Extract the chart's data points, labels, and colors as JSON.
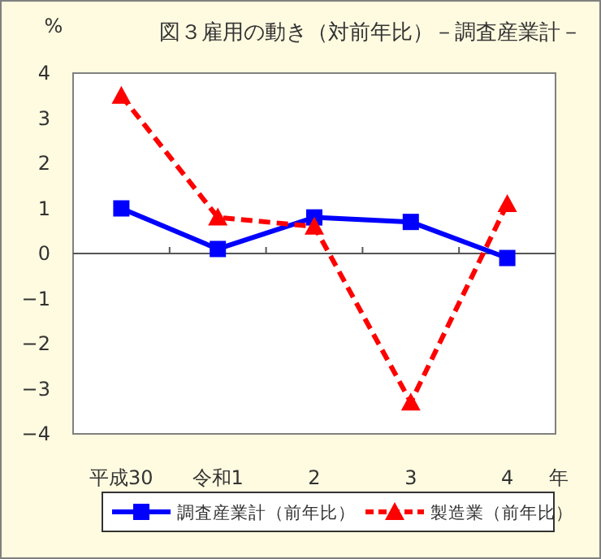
{
  "chart_data": {
    "type": "line",
    "title": "図３雇用の動き（対前年比）－調査産業計－",
    "ylabel": "%",
    "xlabel": "年",
    "categories": [
      "平成30",
      "令和1",
      "2",
      "3",
      "4"
    ],
    "series": [
      {
        "name": "調査産業計（前年比）",
        "color": "#0000ff",
        "values": [
          1.0,
          0.1,
          0.8,
          0.7,
          -0.1
        ],
        "marker": "square",
        "line_style": "solid"
      },
      {
        "name": "製造業（前年比）",
        "color": "#ff0000",
        "values": [
          3.5,
          0.8,
          0.6,
          -3.3,
          1.1
        ],
        "marker": "triangle",
        "line_style": "dashed"
      }
    ],
    "ylim": [
      -4,
      4
    ],
    "yticks": [
      -4,
      -3,
      -2,
      -1,
      0,
      1,
      2,
      3,
      4
    ],
    "legend": "bottom"
  }
}
